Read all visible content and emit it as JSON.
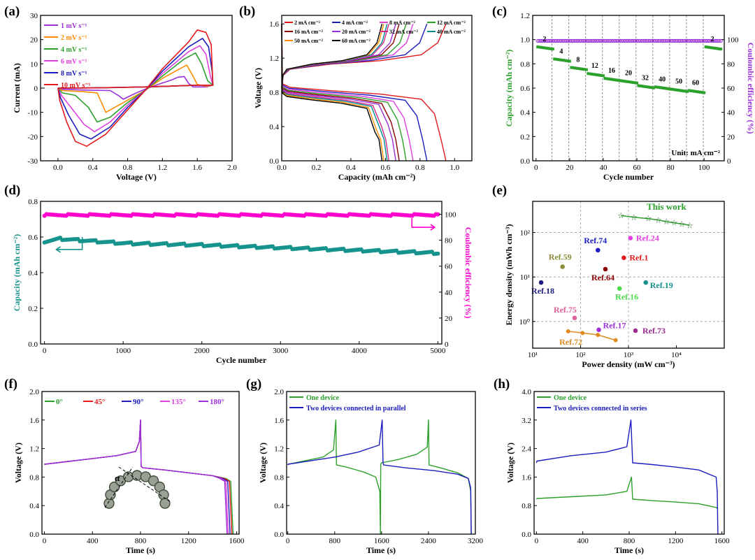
{
  "figure": {
    "panels": [
      "(a)",
      "(b)",
      "(c)",
      "(d)",
      "(e)",
      "(f)",
      "(g)",
      "(h)"
    ]
  },
  "chart_data": [
    {
      "id": "a",
      "type": "line",
      "label": "(a)",
      "xlabel": "Voltage (V)",
      "ylabel": "Current (mA)",
      "xlim": [
        -0.2,
        2.0
      ],
      "ylim": [
        -30,
        30
      ],
      "xticks": [
        "0.0",
        "0.4",
        "0.8",
        "1.2",
        "1.6",
        "2.0"
      ],
      "xtickvals": [
        0,
        0.4,
        0.8,
        1.2,
        1.6,
        2.0
      ],
      "yticks": [
        "-30",
        "-20",
        "-10",
        "0",
        "10",
        "20",
        "30"
      ],
      "ytickvals": [
        -30,
        -20,
        -10,
        0,
        10,
        20,
        30
      ],
      "legend": [
        "1 mV s⁻¹",
        "2 mV s⁻¹",
        "4 mV s⁻¹",
        "6 mV s⁻¹",
        "8 mV s⁻¹",
        "10 mV s⁻¹"
      ],
      "colors": [
        "#9b30d9",
        "#ff8c00",
        "#2ca02c",
        "#e040e0",
        "#1c1cbf",
        "#e31a1c"
      ],
      "series": [
        {
          "name": "1 mV s⁻¹",
          "x": [
            0,
            0.05,
            0.3,
            0.6,
            0.7,
            0.75,
            0.9,
            1.0,
            1.15,
            1.3,
            1.38,
            1.45,
            1.5,
            1.55,
            1.7,
            1.78,
            1.6,
            1.3,
            1.0,
            0.8,
            0.5,
            0.2,
            0
          ],
          "y": [
            0,
            -0.5,
            -0.8,
            -1.0,
            -3.2,
            -4.6,
            -2.0,
            -0.5,
            1.5,
            3.3,
            4.5,
            4.8,
            2.0,
            0.5,
            0.5,
            1.2,
            1.2,
            0.8,
            0.5,
            0.3,
            0.1,
            0,
            0
          ]
        },
        {
          "name": "2 mV s⁻¹",
          "x": [
            0,
            0.05,
            0.3,
            0.45,
            0.55,
            0.65,
            0.8,
            1.0,
            1.2,
            1.4,
            1.48,
            1.55,
            1.6,
            1.7,
            1.78,
            1.6,
            1.3,
            1.0,
            0.7,
            0.4,
            0
          ],
          "y": [
            0,
            -1,
            -1.5,
            -2,
            -10,
            -8,
            -5,
            -1,
            4,
            8,
            9.5,
            5,
            1.5,
            0.8,
            1.2,
            1.2,
            0.8,
            0.5,
            0.3,
            0.1,
            0
          ]
        },
        {
          "name": "4 mV s⁻¹",
          "x": [
            0,
            0.05,
            0.2,
            0.35,
            0.45,
            0.6,
            0.8,
            1.0,
            1.2,
            1.45,
            1.58,
            1.65,
            1.72,
            1.78,
            1.6,
            1.3,
            1.0,
            0.7,
            0.4,
            0
          ],
          "y": [
            0,
            -2,
            -3,
            -8,
            -14,
            -12,
            -6,
            -1,
            5,
            12,
            14.5,
            10,
            3,
            1.2,
            1.2,
            0.8,
            0.5,
            0.3,
            0.1,
            0
          ]
        },
        {
          "name": "6 mV s⁻¹",
          "x": [
            0,
            0.04,
            0.15,
            0.3,
            0.42,
            0.6,
            0.8,
            1.0,
            1.2,
            1.5,
            1.63,
            1.7,
            1.75,
            1.78,
            1.6,
            1.3,
            1.0,
            0.7,
            0.4,
            0
          ],
          "y": [
            0,
            -3,
            -8,
            -15,
            -18,
            -14,
            -7,
            -1,
            6,
            15,
            17.5,
            14,
            5,
            1.2,
            1.2,
            0.8,
            0.5,
            0.3,
            0.1,
            0
          ]
        },
        {
          "name": "8 mV s⁻¹",
          "x": [
            0,
            0.03,
            0.12,
            0.25,
            0.38,
            0.6,
            0.8,
            1.0,
            1.2,
            1.5,
            1.66,
            1.73,
            1.77,
            1.78,
            1.6,
            1.3,
            1.0,
            0.7,
            0.4,
            0
          ],
          "y": [
            0,
            -4,
            -11,
            -19,
            -21,
            -16,
            -8,
            -1,
            7,
            17,
            20.5,
            17,
            7,
            1.2,
            1.2,
            0.8,
            0.5,
            0.3,
            0.1,
            0
          ]
        },
        {
          "name": "10 mV s⁻¹",
          "x": [
            0,
            0.02,
            0.1,
            0.2,
            0.33,
            0.55,
            0.8,
            1.0,
            1.2,
            1.5,
            1.6,
            1.7,
            1.76,
            1.78,
            1.6,
            1.3,
            1.0,
            0.7,
            0.4,
            0
          ],
          "y": [
            0,
            -5,
            -14,
            -22,
            -24,
            -19,
            -9,
            -1,
            8,
            19,
            24,
            23,
            18,
            1.2,
            1.2,
            0.8,
            0.5,
            0.3,
            0.1,
            0
          ]
        }
      ]
    },
    {
      "id": "b",
      "type": "line",
      "label": "(b)",
      "xlabel": "Capacity (mAh cm⁻²)",
      "ylabel": "Voltage (V)",
      "xlim": [
        0,
        1.1
      ],
      "ylim": [
        0,
        1.7
      ],
      "xticks": [
        "0.0",
        "0.2",
        "0.4",
        "0.6",
        "0.8",
        "1.0"
      ],
      "xtickvals": [
        0,
        0.2,
        0.4,
        0.6,
        0.8,
        1.0
      ],
      "yticks": [
        "0.0",
        "0.4",
        "0.8",
        "1.2",
        "1.6"
      ],
      "ytickvals": [
        0,
        0.4,
        0.8,
        1.2,
        1.6
      ],
      "legend": [
        "2 mA cm⁻²",
        "4 mA cm⁻²",
        "8 mA cm⁻²",
        "12 mA cm⁻²",
        "16 mA cm⁻²",
        "20 mA cm⁻²",
        "32 mA cm⁻²",
        "40 mA cm⁻²",
        "50 mA cm⁻²",
        "60 mA cm⁻²"
      ],
      "colors": [
        "#e31a1c",
        "#1c1cbf",
        "#e040e0",
        "#2ca02c",
        "#8b0000",
        "#9b30d9",
        "#d6278f",
        "#008b8b",
        "#ff8c00",
        "#000000"
      ],
      "capacities": [
        0.95,
        0.84,
        0.76,
        0.72,
        0.68,
        0.66,
        0.62,
        0.61,
        0.59,
        0.58
      ]
    },
    {
      "id": "c",
      "type": "scatter",
      "label": "(c)",
      "xlabel": "Cycle number",
      "ylabel": "Capacity (mAh cm⁻²)",
      "ylabel2": "Coulombic efficiency (%)",
      "xlim": [
        -2,
        112
      ],
      "ylim": [
        0,
        1.2
      ],
      "ylim2": [
        0,
        120
      ],
      "xticks": [
        "0",
        "20",
        "40",
        "60",
        "80",
        "100"
      ],
      "xtickvals": [
        0,
        20,
        40,
        60,
        80,
        100
      ],
      "yticks": [
        "0.0",
        "0.2",
        "0.4",
        "0.6",
        "0.8",
        "1.0",
        "1.2"
      ],
      "ytickvals": [
        0,
        0.2,
        0.4,
        0.6,
        0.8,
        1.0,
        1.2
      ],
      "yticks2": [
        "0",
        "20",
        "40",
        "60",
        "80",
        "100"
      ],
      "ytickvals2": [
        0,
        20,
        40,
        60,
        80,
        100
      ],
      "rate_labels": [
        "2",
        "4",
        "8",
        "12",
        "16",
        "20",
        "32",
        "40",
        "50",
        "60",
        "2"
      ],
      "segment_capacity": [
        0.94,
        0.84,
        0.77,
        0.72,
        0.68,
        0.66,
        0.62,
        0.61,
        0.59,
        0.58,
        0.94
      ],
      "coulombic_efficiency": 99,
      "unit_note": "Unit: mA cm⁻²",
      "color_capacity": "#2ca02c",
      "color_ce": "#9b30d9"
    },
    {
      "id": "d",
      "type": "scatter",
      "label": "(d)",
      "xlabel": "Cycle number",
      "ylabel": "Capacity (mAh cm⁻²)",
      "ylabel2": "Coulombic efficiency (%)",
      "xlim": [
        -50,
        5050
      ],
      "ylim": [
        0,
        0.8
      ],
      "ylim2": [
        0,
        110
      ],
      "xticks": [
        "0",
        "1000",
        "2000",
        "3000",
        "4000",
        "5000"
      ],
      "xtickvals": [
        0,
        1000,
        2000,
        3000,
        4000,
        5000
      ],
      "yticks": [
        "0.0",
        "0.2",
        "0.4",
        "0.6",
        "0.8"
      ],
      "ytickvals": [
        0,
        0.2,
        0.4,
        0.6,
        0.8
      ],
      "yticks2": [
        "0",
        "20",
        "40",
        "60",
        "80",
        "100"
      ],
      "ytickvals2": [
        0,
        20,
        40,
        60,
        80,
        100
      ],
      "capacity_x": [
        0,
        200,
        1000,
        2000,
        3000,
        4000,
        5000
      ],
      "capacity_y": [
        0.575,
        0.59,
        0.565,
        0.555,
        0.54,
        0.525,
        0.51
      ],
      "coulombic_efficiency": 99.5,
      "color_capacity": "#16938c",
      "color_ce": "#ff00cc"
    },
    {
      "id": "e",
      "type": "scatter",
      "label": "(e)",
      "xlabel": "Power density (mW cm⁻³)",
      "ylabel": "Energy density (mWh cm⁻³)",
      "xlog": [
        1,
        5
      ],
      "ylog": [
        -0.6,
        2.7
      ],
      "xticks": [
        "10¹",
        "10²",
        "10³",
        "10⁴"
      ],
      "xtickvals": [
        1,
        2,
        3,
        4
      ],
      "yticks": [
        "10⁰",
        "10¹",
        "10²"
      ],
      "ytickvals": [
        0,
        1,
        2
      ],
      "this_work": {
        "label": "This work",
        "color": "#2ca02c",
        "x": [
          700,
          1300,
          2600,
          4200,
          6200,
          9000,
          13000,
          19000
        ],
        "y": [
          240,
          220,
          205,
          190,
          175,
          165,
          155,
          145
        ]
      },
      "refs": [
        {
          "label": "Ref.74",
          "x": 230,
          "y": 40,
          "color": "#1c1cbf"
        },
        {
          "label": "Ref.24",
          "x": 1100,
          "y": 75,
          "color": "#e040e0"
        },
        {
          "label": "Ref.59",
          "x": 42,
          "y": 17,
          "color": "#8b8b3a"
        },
        {
          "label": "Ref.1",
          "x": 800,
          "y": 27,
          "color": "#e31a1c"
        },
        {
          "label": "Ref.64",
          "x": 330,
          "y": 15,
          "color": "#8b0000"
        },
        {
          "label": "Ref.18",
          "x": 15,
          "y": 7.5,
          "color": "#1c1c7f"
        },
        {
          "label": "Ref.16",
          "x": 650,
          "y": 5.5,
          "color": "#4cd94c"
        },
        {
          "label": "Ref.19",
          "x": 2300,
          "y": 7.5,
          "color": "#16938c"
        },
        {
          "label": "Ref.75",
          "x": 75,
          "y": 1.2,
          "color": "#e0609c"
        },
        {
          "label": "Ref.17",
          "x": 240,
          "y": 0.65,
          "color": "#9b30d9"
        },
        {
          "label": "Ref.73",
          "x": 1400,
          "y": 0.62,
          "color": "#9b2a8f"
        }
      ],
      "ref72": {
        "label": "Ref.72",
        "color": "#e08a20",
        "x": [
          55,
          110,
          230,
          540
        ],
        "y": [
          0.6,
          0.55,
          0.5,
          0.38
        ]
      }
    },
    {
      "id": "f",
      "type": "line",
      "label": "(f)",
      "xlabel": "Time (s)",
      "ylabel": "Voltage (V)",
      "xlim": [
        -20,
        1620
      ],
      "ylim": [
        0,
        2.0
      ],
      "xticks": [
        "0",
        "400",
        "800",
        "1200",
        "1600"
      ],
      "xtickvals": [
        0,
        400,
        800,
        1200,
        1600
      ],
      "yticks": [
        "0.0",
        "0.4",
        "0.8",
        "1.2",
        "1.6",
        "2.0"
      ],
      "ytickvals": [
        0,
        0.4,
        0.8,
        1.2,
        1.6,
        2.0
      ],
      "legend": [
        "0°",
        "45°",
        "90°",
        "135°",
        "180°"
      ],
      "colors": [
        "#2ca02c",
        "#e31a1c",
        "#1c1cbf",
        "#e040e0",
        "#9b30d9"
      ],
      "end_times": [
        1570,
        1560,
        1545,
        1530,
        1520
      ],
      "inset_label": "α"
    },
    {
      "id": "g",
      "type": "line",
      "label": "(g)",
      "xlabel": "Time (s)",
      "ylabel": "Voltage (V)",
      "xlim": [
        -20,
        3200
      ],
      "ylim": [
        0,
        2.0
      ],
      "xticks": [
        "0",
        "800",
        "1600",
        "2400",
        "3200"
      ],
      "xtickvals": [
        0,
        800,
        1600,
        2400,
        3200
      ],
      "yticks": [
        "0.0",
        "0.4",
        "0.8",
        "1.2",
        "1.6",
        "2.0"
      ],
      "ytickvals": [
        0,
        0.4,
        0.8,
        1.2,
        1.6,
        2.0
      ],
      "legend": [
        "One device",
        "Two devices connected in parallel"
      ],
      "colors": [
        "#2ca02c",
        "#1c1cbf"
      ]
    },
    {
      "id": "h",
      "type": "line",
      "label": "(h)",
      "xlabel": "Time (s)",
      "ylabel": "Voltage (V)",
      "xlim": [
        -20,
        1620
      ],
      "ylim": [
        0,
        4.0
      ],
      "xticks": [
        "0",
        "400",
        "800",
        "1200",
        "1600"
      ],
      "xtickvals": [
        0,
        400,
        800,
        1200,
        1600
      ],
      "yticks": [
        "0.0",
        "0.8",
        "1.6",
        "2.4",
        "3.2",
        "4.0"
      ],
      "ytickvals": [
        0,
        0.8,
        1.6,
        2.4,
        3.2,
        4.0
      ],
      "legend": [
        "One device",
        "Two devices connected in series"
      ],
      "colors": [
        "#2ca02c",
        "#1c1cbf"
      ]
    }
  ]
}
